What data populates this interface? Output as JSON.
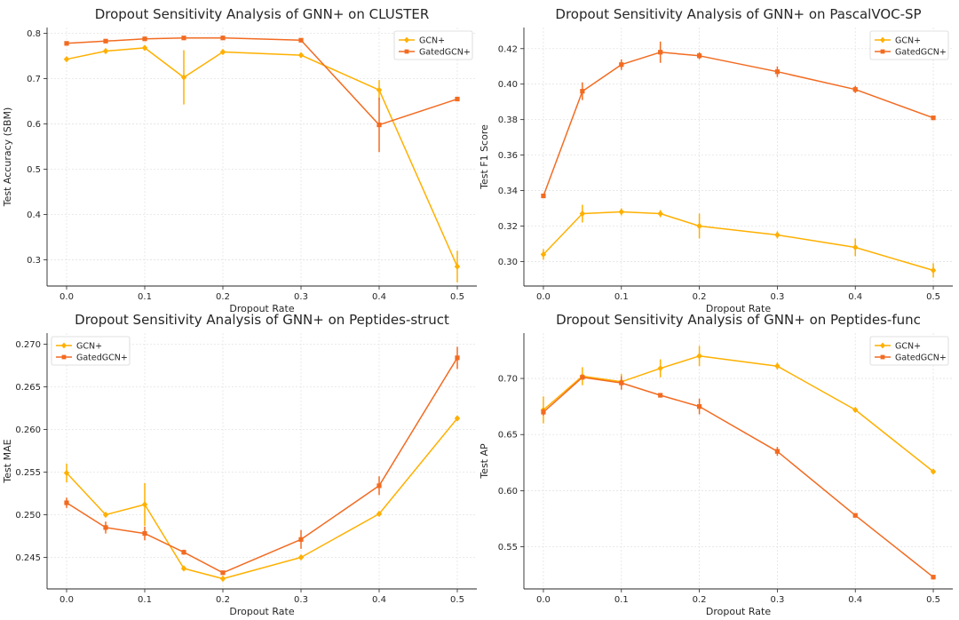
{
  "colors": {
    "GCN+": "#ffb000",
    "GatedGCN+": "#f26b21",
    "grid": "#e3e3e3",
    "axis": "#262626"
  },
  "chart_data": [
    {
      "type": "line",
      "title": "Dropout Sensitivity Analysis of GNN+ on CLUSTER",
      "xlabel": "Dropout Rate",
      "ylabel": "Test Accuracy (SBM)",
      "x": [
        0.0,
        0.05,
        0.1,
        0.15,
        0.2,
        0.3,
        0.4,
        0.5
      ],
      "xticks": [
        "0.0",
        "0.1",
        "0.2",
        "0.3",
        "0.4",
        "0.5"
      ],
      "yticks": [
        "0.3",
        "0.4",
        "0.5",
        "0.6",
        "0.7",
        "0.8"
      ],
      "xlim": [
        -0.025,
        0.525
      ],
      "ylim": [
        0.242,
        0.813
      ],
      "grid": true,
      "legend_position": "top-right",
      "series": [
        {
          "name": "GCN+",
          "values": [
            0.743,
            0.761,
            0.768,
            0.703,
            0.759,
            0.752,
            0.675,
            0.285
          ],
          "errors": [
            0.003,
            0.004,
            0.004,
            0.06,
            0.004,
            0.003,
            0.022,
            0.035
          ]
        },
        {
          "name": "GatedGCN+",
          "values": [
            0.778,
            0.783,
            0.788,
            0.79,
            0.79,
            0.785,
            0.598,
            0.655
          ],
          "errors": [
            0.002,
            0.002,
            0.002,
            0.002,
            0.002,
            0.002,
            0.06,
            0.004
          ]
        }
      ]
    },
    {
      "type": "line",
      "title": "Dropout Sensitivity Analysis of GNN+ on PascalVOC-SP",
      "xlabel": "Dropout Rate",
      "ylabel": "Test F1 Score",
      "x": [
        0.0,
        0.05,
        0.1,
        0.15,
        0.2,
        0.3,
        0.4,
        0.5
      ],
      "xticks": [
        "0.0",
        "0.1",
        "0.2",
        "0.3",
        "0.4",
        "0.5"
      ],
      "yticks": [
        "0.30",
        "0.32",
        "0.34",
        "0.36",
        "0.38",
        "0.40",
        "0.42"
      ],
      "xlim": [
        -0.025,
        0.525
      ],
      "ylim": [
        0.2862,
        0.4319
      ],
      "grid": true,
      "legend_position": "top-right",
      "series": [
        {
          "name": "GCN+",
          "values": [
            0.304,
            0.327,
            0.328,
            0.327,
            0.32,
            0.315,
            0.308,
            0.295
          ],
          "errors": [
            0.003,
            0.005,
            0.002,
            0.002,
            0.007,
            0.002,
            0.005,
            0.004
          ]
        },
        {
          "name": "GatedGCN+",
          "values": [
            0.337,
            0.396,
            0.411,
            0.418,
            0.416,
            0.407,
            0.397,
            0.381
          ],
          "errors": [
            0.001,
            0.005,
            0.003,
            0.006,
            0.002,
            0.003,
            0.002,
            0.001
          ]
        }
      ]
    },
    {
      "type": "line",
      "title": "Dropout Sensitivity Analysis of GNN+ on Peptides-struct",
      "xlabel": "Dropout Rate",
      "ylabel": "Test MAE",
      "x": [
        0.0,
        0.05,
        0.1,
        0.15,
        0.2,
        0.3,
        0.4,
        0.5
      ],
      "xticks": [
        "0.0",
        "0.1",
        "0.2",
        "0.3",
        "0.4",
        "0.5"
      ],
      "yticks": [
        "0.245",
        "0.250",
        "0.255",
        "0.260",
        "0.265",
        "0.270"
      ],
      "xlim": [
        -0.025,
        0.525
      ],
      "ylim": [
        0.2413,
        0.2713
      ],
      "grid": true,
      "legend_position": "top-left",
      "series": [
        {
          "name": "GCN+",
          "values": [
            0.2549,
            0.25,
            0.2512,
            0.2437,
            0.2425,
            0.245,
            0.2501,
            0.2613
          ],
          "errors": [
            0.0011,
            0.0002,
            0.0025,
            0.0002,
            0.0002,
            0.0001,
            0.0002,
            0.0003
          ]
        },
        {
          "name": "GatedGCN+",
          "values": [
            0.2514,
            0.2485,
            0.2478,
            0.2456,
            0.2432,
            0.2471,
            0.2534,
            0.2684
          ],
          "errors": [
            0.0006,
            0.0007,
            0.0008,
            0.0003,
            0.0002,
            0.0011,
            0.0011,
            0.0013
          ]
        }
      ]
    },
    {
      "type": "line",
      "title": "Dropout Sensitivity Analysis of GNN+ on Peptides-func",
      "xlabel": "Dropout Rate",
      "ylabel": "Test AP",
      "x": [
        0.0,
        0.05,
        0.1,
        0.15,
        0.2,
        0.3,
        0.4,
        0.5
      ],
      "xticks": [
        "0.0",
        "0.1",
        "0.2",
        "0.3",
        "0.4",
        "0.5"
      ],
      "yticks": [
        "0.55",
        "0.60",
        "0.65",
        "0.70"
      ],
      "xlim": [
        -0.025,
        0.525
      ],
      "ylim": [
        0.5125,
        0.7404
      ],
      "grid": true,
      "legend_position": "top-right",
      "series": [
        {
          "name": "GCN+",
          "values": [
            0.672,
            0.702,
            0.697,
            0.709,
            0.72,
            0.711,
            0.672,
            0.617
          ],
          "errors": [
            0.012,
            0.008,
            0.007,
            0.008,
            0.009,
            0.003,
            0.002,
            0.001
          ]
        },
        {
          "name": "GatedGCN+",
          "values": [
            0.67,
            0.701,
            0.696,
            0.685,
            0.675,
            0.635,
            0.578,
            0.523
          ],
          "errors": [
            0.003,
            0.002,
            0.006,
            0.002,
            0.007,
            0.004,
            0.001,
            0.002
          ]
        }
      ]
    }
  ]
}
